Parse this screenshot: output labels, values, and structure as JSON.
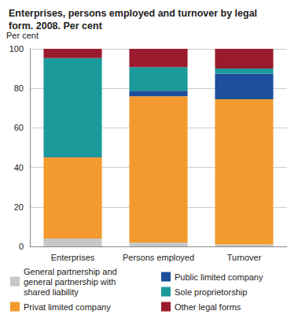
{
  "chart_data": {
    "type": "bar",
    "title": "Enterprises, persons employed and turnover by legal form. 2008. Per cent",
    "y_label": "Per cent",
    "categories": [
      "Enterprises",
      "Persons employed",
      "Turnover"
    ],
    "stacked": true,
    "grid": true,
    "legend": "bottom",
    "ylim": [
      0,
      100
    ],
    "yticks": [
      0,
      20,
      40,
      60,
      80,
      100
    ],
    "series": [
      {
        "name": "General partnership and general partnership with shared liability",
        "color": "#c8c8c8",
        "values": [
          4,
          2,
          1
        ]
      },
      {
        "name": "Privat limited company",
        "color": "#f39a2e",
        "values": [
          41,
          74,
          73.5
        ]
      },
      {
        "name": "Public limited company",
        "color": "#1c4f9c",
        "values": [
          0.3,
          2.8,
          13
        ]
      },
      {
        "name": "Sole proprietorship",
        "color": "#1b9a9c",
        "values": [
          50,
          11.9,
          2.5
        ]
      },
      {
        "name": "Other legal forms",
        "color": "#9b1b2e",
        "values": [
          4.7,
          9.3,
          10
        ]
      }
    ]
  }
}
